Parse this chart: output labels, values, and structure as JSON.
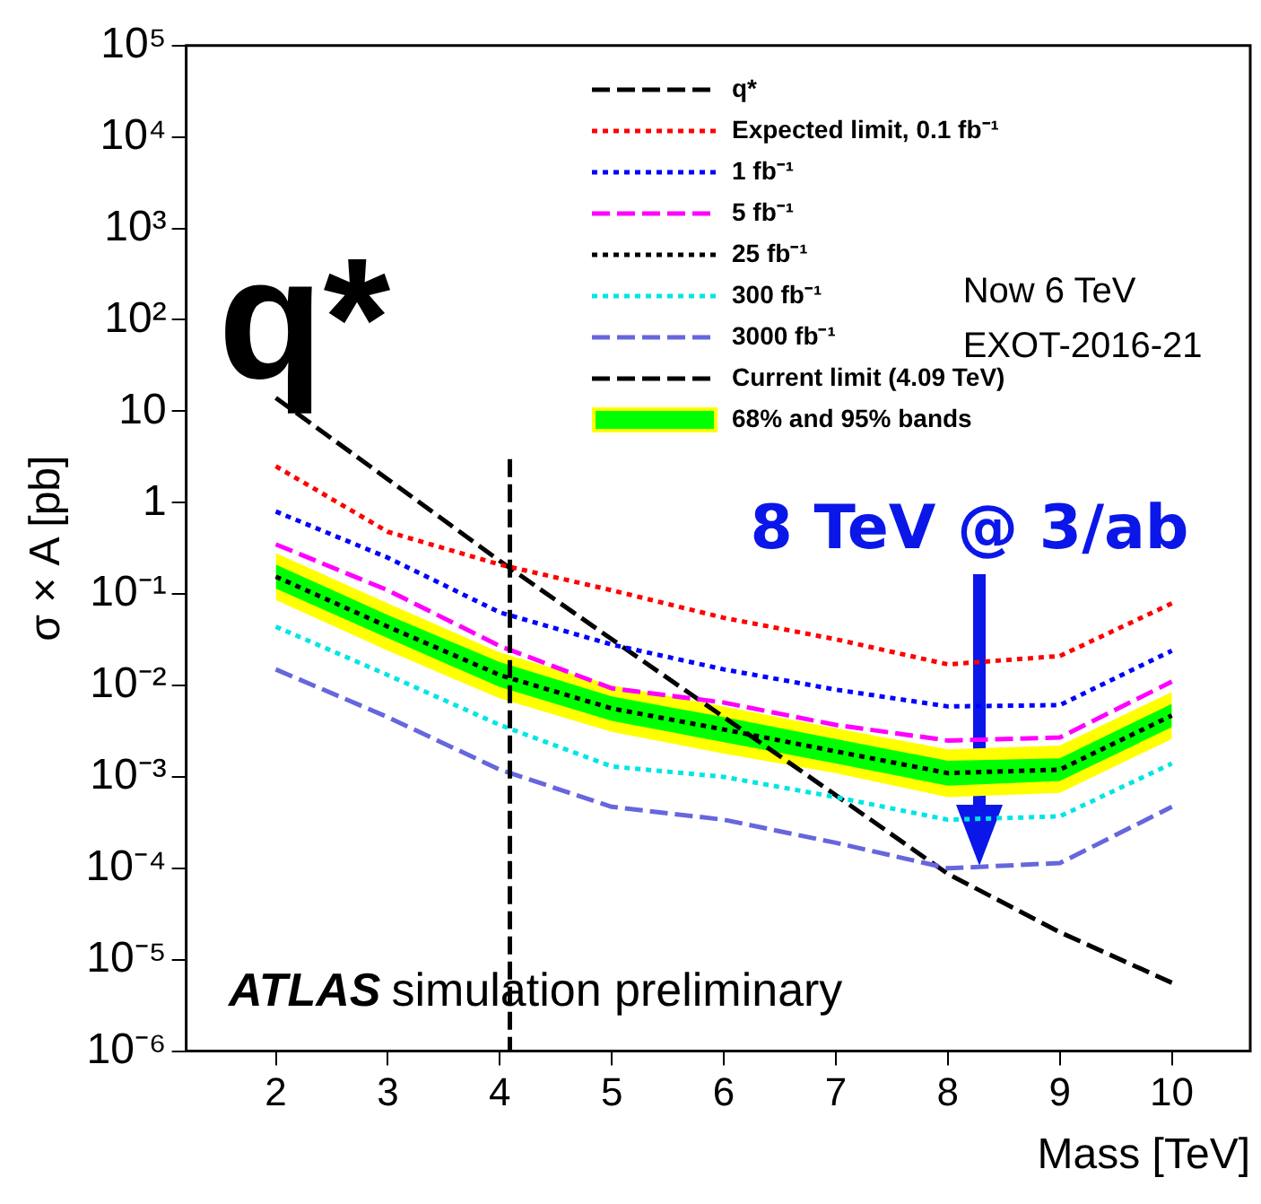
{
  "chart_data": {
    "type": "line",
    "xlabel": "Mass [TeV]",
    "ylabel": "σ × A [pb]",
    "x": [
      2,
      3,
      4,
      5,
      6,
      7,
      8,
      9,
      10
    ],
    "xlim": [
      1.2,
      10.7
    ],
    "xticks": [
      2,
      3,
      4,
      5,
      6,
      7,
      8,
      9,
      10
    ],
    "ylim": [
      1e-06,
      100000
    ],
    "log": "y",
    "yticks": [
      {
        "value": 1e-06,
        "label": "10⁻⁶"
      },
      {
        "value": 1e-05,
        "label": "10⁻⁵"
      },
      {
        "value": 0.0001,
        "label": "10⁻⁴"
      },
      {
        "value": 0.001,
        "label": "10⁻³"
      },
      {
        "value": 0.01,
        "label": "10⁻²"
      },
      {
        "value": 0.1,
        "label": "10⁻¹"
      },
      1,
      10,
      {
        "value": 100,
        "label": "10²"
      },
      {
        "value": 1000,
        "label": "10³"
      },
      {
        "value": 10000,
        "label": "10⁴"
      },
      {
        "value": 100000,
        "label": "10⁵"
      }
    ],
    "grid": false,
    "legend": "top right",
    "series": [
      {
        "name": "q*",
        "color": "#000000",
        "line_style": "dashed",
        "values": [
          14,
          1.8,
          0.23,
          0.032,
          0.0045,
          0.00063,
          8.7e-05,
          2e-05,
          5.6e-06
        ]
      },
      {
        "name": "Expected limit, 0.1 fb⁻¹",
        "color": "#ff0000",
        "line_style": "dotted",
        "values": [
          2.5,
          0.48,
          0.21,
          0.11,
          0.055,
          0.032,
          0.017,
          0.021,
          0.079
        ]
      },
      {
        "name": "1 fb⁻¹",
        "color": "#0000ff",
        "line_style": "dotted",
        "values": [
          0.8,
          0.25,
          0.063,
          0.028,
          0.015,
          0.009,
          0.0059,
          0.0061,
          0.024
        ]
      },
      {
        "name": "5 fb⁻¹",
        "color": "#ff00ff",
        "line_style": "dashed",
        "values": [
          0.35,
          0.11,
          0.027,
          0.0093,
          0.0065,
          0.0037,
          0.0025,
          0.0027,
          0.011
        ]
      },
      {
        "name": "25 fb⁻¹",
        "color": "#000000",
        "line_style": "dotted",
        "values": [
          0.155,
          0.044,
          0.013,
          0.0056,
          0.0033,
          0.0019,
          0.0011,
          0.0012,
          0.0047
        ]
      },
      {
        "name": "300 fb⁻¹",
        "color": "#00e5e5",
        "line_style": "dotted",
        "values": [
          0.044,
          0.013,
          0.0037,
          0.0013,
          0.001,
          0.0006,
          0.00034,
          0.00037,
          0.0014
        ]
      },
      {
        "name": "3000 fb⁻¹",
        "color": "#6666dd",
        "line_style": "dashed",
        "values": [
          0.015,
          0.0045,
          0.0012,
          0.00047,
          0.00034,
          0.00019,
          0.0001,
          0.000114,
          0.00047
        ]
      },
      {
        "name": "Current limit (4.09 TeV)",
        "color": "#000000",
        "line_style": "dashed",
        "x": [
          4.09,
          4.09
        ],
        "values": [
          3,
          1e-06
        ]
      },
      {
        "name": "68% and 95% bands",
        "type": "area",
        "color": "#00ff00",
        "values": [
          null,
          null,
          null,
          null,
          null,
          null,
          null,
          null,
          null
        ],
        "lower": [
          0.115,
          0.033,
          0.0096,
          0.0041,
          0.0024,
          0.0014,
          0.0008,
          0.0009,
          0.0035
        ],
        "upper": [
          0.21,
          0.059,
          0.018,
          0.0076,
          0.0045,
          0.0026,
          0.0015,
          0.0016,
          0.0063
        ]
      },
      {
        "type": "area",
        "color": "#ffff00",
        "values": [
          null,
          null,
          null,
          null,
          null,
          null,
          null,
          null,
          null
        ],
        "lower": [
          0.086,
          0.024,
          0.0072,
          0.0031,
          0.0018,
          0.0011,
          0.0006,
          0.00067,
          0.0026
        ],
        "upper": [
          0.28,
          0.079,
          0.023,
          0.01,
          0.0059,
          0.0034,
          0.002,
          0.0022,
          0.0085
        ]
      }
    ],
    "annotations": [
      "q*",
      "Now 6 TeV",
      "EXOT-2016-21",
      "8 TeV @ 3/ab",
      "ATLAS",
      "simulation preliminary"
    ]
  }
}
